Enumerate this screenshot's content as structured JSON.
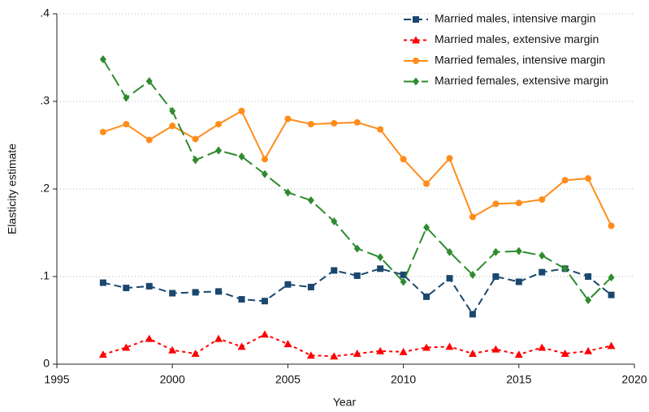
{
  "chart_data": {
    "type": "line",
    "x_label": "Year",
    "y_label": "Elasticity estimate",
    "x": [
      1997,
      1998,
      1999,
      2000,
      2001,
      2002,
      2003,
      2004,
      2005,
      2006,
      2007,
      2008,
      2009,
      2010,
      2011,
      2012,
      2013,
      2014,
      2015,
      2016,
      2017,
      2018,
      2019
    ],
    "xlim": [
      1995,
      2020
    ],
    "xticks": [
      1995,
      2000,
      2005,
      2010,
      2015,
      2020
    ],
    "ylim": [
      0,
      0.4
    ],
    "yticks": [
      0,
      {
        "value": 0.1,
        "label": ".1"
      },
      {
        "value": 0.2,
        "label": ".2"
      },
      {
        "value": 0.3,
        "label": ".3"
      },
      {
        "value": 0.4,
        "label": ".4"
      }
    ],
    "grid": true,
    "legend": "top-right",
    "series": [
      {
        "name": "Married males, intensive margin",
        "color": "#1a476f",
        "marker": "square",
        "dash": "dashed",
        "values": [
          0.093,
          0.087,
          0.089,
          0.081,
          0.082,
          0.083,
          0.074,
          0.072,
          0.091,
          0.088,
          0.107,
          0.101,
          0.109,
          0.102,
          0.077,
          0.098,
          0.057,
          0.1,
          0.094,
          0.105,
          0.109,
          0.1,
          0.079
        ]
      },
      {
        "name": "Married males, extensive margin",
        "color": "#ff0000",
        "marker": "triangle",
        "dash": "short-dash",
        "values": [
          0.011,
          0.019,
          0.029,
          0.016,
          0.012,
          0.029,
          0.02,
          0.034,
          0.023,
          0.01,
          0.009,
          0.012,
          0.015,
          0.014,
          0.019,
          0.02,
          0.012,
          0.017,
          0.011,
          0.019,
          0.012,
          0.015,
          0.021
        ]
      },
      {
        "name": "Married females, intensive margin",
        "color": "#ff8c1a",
        "marker": "circle",
        "dash": "solid",
        "values": [
          0.265,
          0.274,
          0.256,
          0.272,
          0.257,
          0.274,
          0.289,
          0.234,
          0.28,
          0.274,
          0.275,
          0.276,
          0.268,
          0.234,
          0.206,
          0.235,
          0.168,
          0.183,
          0.184,
          0.188,
          0.21,
          0.212,
          0.158
        ]
      },
      {
        "name": "Married females, extensive margin",
        "color": "#2e8b2e",
        "marker": "diamond",
        "dash": "long-dash",
        "values": [
          0.348,
          0.304,
          0.323,
          0.289,
          0.233,
          0.244,
          0.237,
          0.217,
          0.196,
          0.187,
          0.163,
          0.132,
          0.122,
          0.094,
          0.156,
          0.128,
          0.102,
          0.128,
          0.129,
          0.124,
          0.109,
          0.073,
          0.099
        ]
      }
    ]
  }
}
